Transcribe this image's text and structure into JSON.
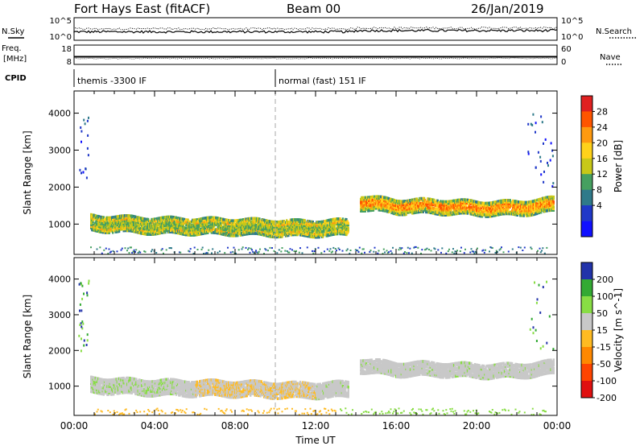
{
  "header": {
    "station": "Fort Hays East (fitACF)",
    "beam": "Beam 00",
    "date": "26/Jan/2019"
  },
  "top_panels": {
    "sky_label": "N.Sky",
    "search_label": "N.Search",
    "freq_label_line1": "Freq.",
    "freq_label_line2": "[MHz]",
    "nave_label": "Nave",
    "cpid_label": "CPID",
    "sky_ticks": [
      "10^5",
      "10^0"
    ],
    "search_ticks": [
      "10^5",
      "10^0"
    ],
    "freq_ticks": [
      "18",
      "8"
    ],
    "nave_ticks": [
      "60",
      "0"
    ],
    "cpid_segments": [
      {
        "label": "themis -3300 IF",
        "start_hour": 0
      },
      {
        "label": "normal (fast) 151 IF",
        "start_hour": 10
      }
    ]
  },
  "colorbars": {
    "power": {
      "label": "Power [dB]",
      "ticks": [
        "28",
        "24",
        "20",
        "16",
        "12",
        "8",
        "4"
      ],
      "colors": [
        "#e02020",
        "#ff5500",
        "#ff9a10",
        "#ffd21a",
        "#c8c818",
        "#46a060",
        "#2f7a8a",
        "#2038c8",
        "#1010ff"
      ]
    },
    "velocity": {
      "label": "Velocity [m s^-1]",
      "ticks": [
        "200",
        "100",
        "50",
        "15",
        "-15",
        "-50",
        "-100",
        "-200"
      ],
      "colors": [
        "#2233aa",
        "#33aa33",
        "#88dd44",
        "#c8c8c8",
        "#ffbb22",
        "#ff8800",
        "#ff4400",
        "#e01010"
      ]
    }
  },
  "chart_data": [
    {
      "type": "heatmap",
      "title": "Power",
      "xlabel": "",
      "ylabel": "Slant Range [km]",
      "xlim_hours": [
        0,
        24
      ],
      "ylim": [
        180,
        4600
      ],
      "y_ticks": [
        1000,
        2000,
        3000,
        4000
      ],
      "colorbar_label": "Power [dB]",
      "echo_bands": [
        {
          "start_hour": 0.8,
          "end_hour": 13.6,
          "center_km": [
            [
              0.8,
              1050
            ],
            [
              4,
              980
            ],
            [
              8,
              950
            ],
            [
              11,
              900
            ],
            [
              13.6,
              930
            ]
          ],
          "width_km": 420,
          "power_db": 14
        },
        {
          "start_hour": 14.2,
          "end_hour": 23.8,
          "center_km": [
            [
              14.2,
              1600
            ],
            [
              16,
              1500
            ],
            [
              18,
              1500
            ],
            [
              20,
              1450
            ],
            [
              22,
              1450
            ],
            [
              23.8,
              1550
            ]
          ],
          "width_km": 380,
          "power_db": 20
        }
      ],
      "near_range_band_km": [
        200,
        450
      ]
    },
    {
      "type": "heatmap",
      "title": "Velocity",
      "xlabel": "Time UT",
      "ylabel": "Slant Range [km]",
      "x_ticks": [
        "00:00",
        "04:00",
        "08:00",
        "12:00",
        "16:00",
        "20:00",
        "00:00"
      ],
      "xlim_hours": [
        0,
        24
      ],
      "ylim": [
        180,
        4600
      ],
      "y_ticks": [
        1000,
        2000,
        3000,
        4000
      ],
      "colorbar_label": "Velocity [m s^-1]",
      "echo_bands": [
        {
          "start_hour": 0.8,
          "end_hour": 13.6,
          "center_km": [
            [
              0.8,
              1050
            ],
            [
              4,
              980
            ],
            [
              8,
              950
            ],
            [
              11,
              900
            ],
            [
              13.6,
              930
            ]
          ],
          "width_km": 420,
          "velocity_ms": 0
        },
        {
          "start_hour": 14.2,
          "end_hour": 23.8,
          "center_km": [
            [
              14.2,
              1600
            ],
            [
              16,
              1500
            ],
            [
              18,
              1500
            ],
            [
              20,
              1450
            ],
            [
              22,
              1450
            ],
            [
              23.8,
              1550
            ]
          ],
          "width_km": 380,
          "velocity_ms": 0
        }
      ]
    }
  ]
}
